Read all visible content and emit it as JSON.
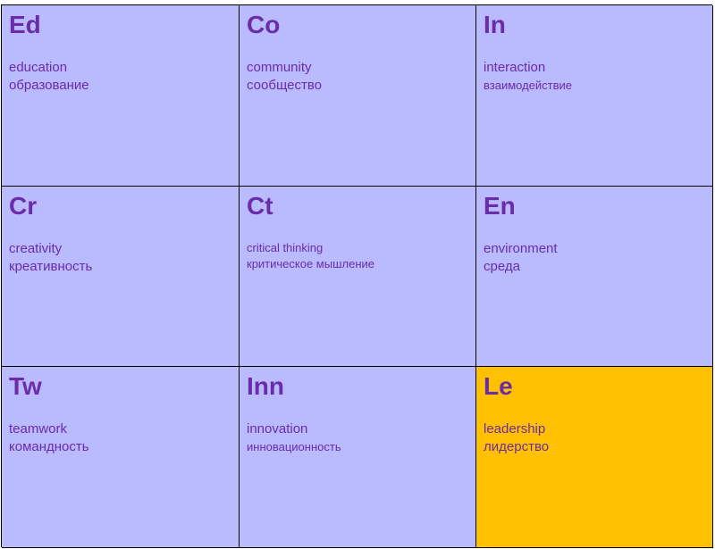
{
  "cells": [
    {
      "symbol": "Ed",
      "en": "education",
      "ru": "образование"
    },
    {
      "symbol": "Co",
      "en": "community",
      "ru": "сообщество"
    },
    {
      "symbol": "In",
      "en": "interaction",
      "ru": "взаимодействие"
    },
    {
      "symbol": "Cr",
      "en": "creativity",
      "ru": "креативность"
    },
    {
      "symbol": "Ct",
      "en": "critical thinking",
      "ru": "критическое мышление"
    },
    {
      "symbol": "En",
      "en": "environment",
      "ru": "среда"
    },
    {
      "symbol": "Tw",
      "en": "teamwork",
      "ru": "командность"
    },
    {
      "symbol": "Inn",
      "en": "innovation",
      "ru": "инновационность"
    },
    {
      "symbol": "Le",
      "en": "leadership",
      "ru": "лидерство"
    }
  ],
  "colors": {
    "cell_background": "#babaff",
    "highlight_background": "#ffc000",
    "text": "#6a2ca8",
    "border": "#000000"
  }
}
